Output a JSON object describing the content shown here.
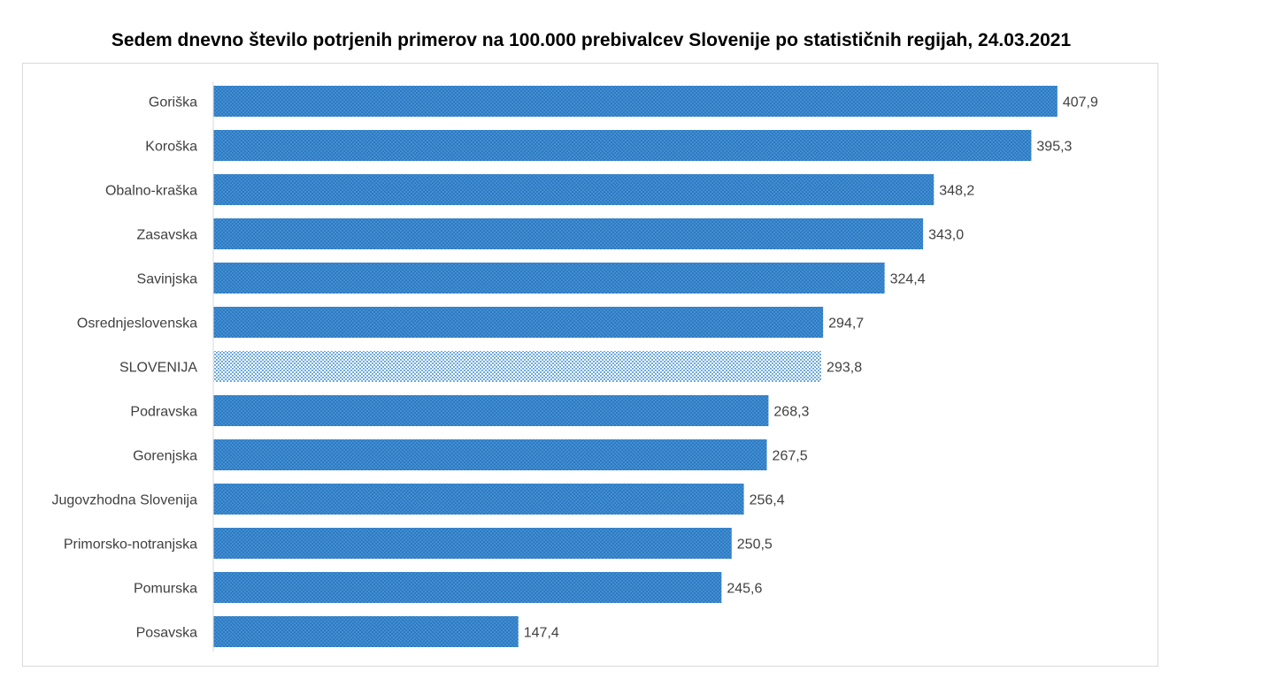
{
  "chart_data": {
    "type": "bar",
    "orientation": "horizontal",
    "title": "Sedem dnevno število potrjenih primerov na 100.000 prebivalcev Slovenije po statističnih regijah, 24.03.2021",
    "xlabel": "",
    "ylabel": "",
    "categories": [
      "Goriška",
      "Koroška",
      "Obalno-kraška",
      "Zasavska",
      "Savinjska",
      "Osrednjeslovenska",
      "SLOVENIJA",
      "Podravska",
      "Gorenjska",
      "Jugovzhodna Slovenija",
      "Primorsko-notranjska",
      "Pomurska",
      "Posavska"
    ],
    "values": [
      407.9,
      395.3,
      348.2,
      343.0,
      324.4,
      294.7,
      293.8,
      268.3,
      267.5,
      256.4,
      250.5,
      245.6,
      147.4
    ],
    "value_labels": [
      "407,9",
      "395,3",
      "348,2",
      "343,0",
      "324,4",
      "294,7",
      "293,8",
      "268,3",
      "267,5",
      "256,4",
      "250,5",
      "245,6",
      "147,4"
    ],
    "highlight_category": "SLOVENIJA",
    "xlim": [
      0,
      450
    ],
    "grid": false,
    "legend": "none",
    "colors": {
      "bar_fill": "#3f8fd6",
      "bar_pattern": "#1f5fa0",
      "highlight_fill": "#ffffff",
      "highlight_pattern": "#3f8fd6",
      "axis": "#d9d9d9",
      "label_text": "#404040"
    }
  }
}
